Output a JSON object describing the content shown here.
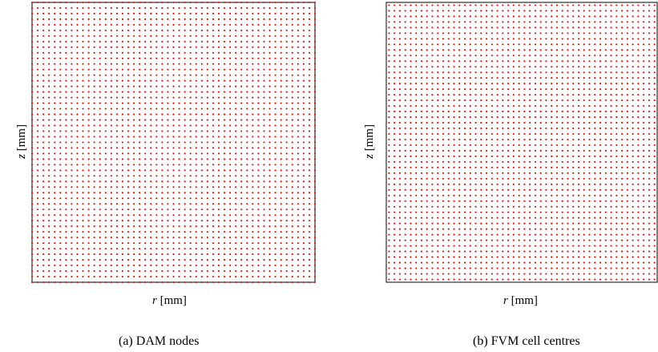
{
  "panels": [
    {
      "id": "a",
      "caption": "(a) DAM nodes",
      "xlabel_var": "r",
      "xlabel_unit": "[mm]",
      "ylabel_var": "z",
      "ylabel_unit": "[mm]",
      "point_color": "#e00000",
      "description": "node points including boundary"
    },
    {
      "id": "b",
      "caption": "(b) FVM cell centres",
      "xlabel_var": "r",
      "xlabel_unit": "[mm]",
      "ylabel_var": "z",
      "ylabel_unit": "[mm]",
      "point_color": "#e00000",
      "description": "cell centres offset from boundary"
    }
  ]
}
